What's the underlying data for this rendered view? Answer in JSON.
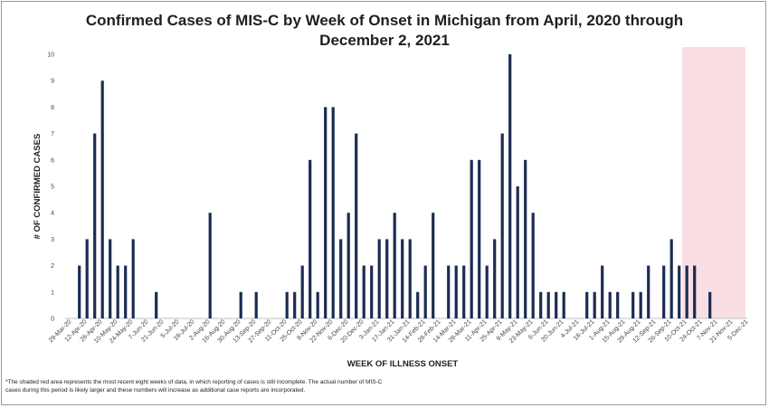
{
  "chart_data": {
    "type": "bar",
    "title_line1": "Confirmed Cases of MIS-C by Week of Onset in Michigan from April, 2020 through",
    "title_line2": "December 2, 2021",
    "xlabel": "WEEK OF ILLNESS ONSET",
    "ylabel": "# OF CONFIRMED CASES",
    "ylim": [
      0,
      10
    ],
    "yticks": [
      0,
      1,
      2,
      3,
      4,
      5,
      6,
      7,
      8,
      9,
      10
    ],
    "grid": false,
    "x_tick_labels": [
      "29-Mar-20",
      "12-Apr-20",
      "26-Apr-20",
      "10-May-20",
      "24-May-20",
      "7-Jun-20",
      "21-Jun-20",
      "5-Jul-20",
      "19-Jul-20",
      "2-Aug-20",
      "16-Aug-20",
      "30-Aug-20",
      "13-Sep-20",
      "27-Sep-20",
      "11-Oct-20",
      "25-Oct-20",
      "8-Nov-20",
      "22-Nov-20",
      "6-Dec-20",
      "20-Dec-20",
      "3-Jan-21",
      "17-Jan-21",
      "31-Jan-21",
      "14-Feb-21",
      "28-Feb-21",
      "14-Mar-21",
      "28-Mar-21",
      "11-Apr-21",
      "25-Apr-21",
      "9-May-21",
      "23-May-21",
      "6-Jun-21",
      "20-Jun-21",
      "4-Jul-21",
      "18-Jul-21",
      "1-Aug-21",
      "15-Aug-21",
      "29-Aug-21",
      "12-Sep-21",
      "26-Sep-21",
      "10-Oct-21",
      "24-Oct-21",
      "7-Nov-21",
      "21-Nov-21",
      "5-Dec-21"
    ],
    "weekly_values": [
      0,
      2,
      3,
      7,
      9,
      3,
      2,
      2,
      3,
      0,
      0,
      1,
      0,
      0,
      0,
      0,
      0,
      0,
      4,
      0,
      0,
      0,
      1,
      0,
      1,
      0,
      0,
      0,
      1,
      1,
      2,
      6,
      1,
      8,
      8,
      3,
      4,
      7,
      2,
      2,
      3,
      3,
      4,
      3,
      3,
      1,
      2,
      4,
      0,
      2,
      2,
      2,
      6,
      6,
      2,
      3,
      7,
      10,
      5,
      6,
      4,
      1,
      1,
      1,
      1,
      0,
      0,
      1,
      1,
      2,
      1,
      1,
      0,
      1,
      1,
      2,
      0,
      2,
      3,
      2,
      2,
      2,
      0,
      1,
      0,
      0,
      0,
      0
    ],
    "shaded_region": {
      "start_week_index": 80,
      "end_week_index": 88,
      "color": "#f9dfe3",
      "note": "most recent eight weeks"
    },
    "bar_color": "#1c2b52"
  },
  "footnote": {
    "line1": "*The shaded red area represents the most recent eight weeks of data, in which reporting of cases is still incomplete. The actual number of MIS-C",
    "line2": "cases during this period is likely larger and these numbers will increase as additional case reports are incorporated."
  }
}
